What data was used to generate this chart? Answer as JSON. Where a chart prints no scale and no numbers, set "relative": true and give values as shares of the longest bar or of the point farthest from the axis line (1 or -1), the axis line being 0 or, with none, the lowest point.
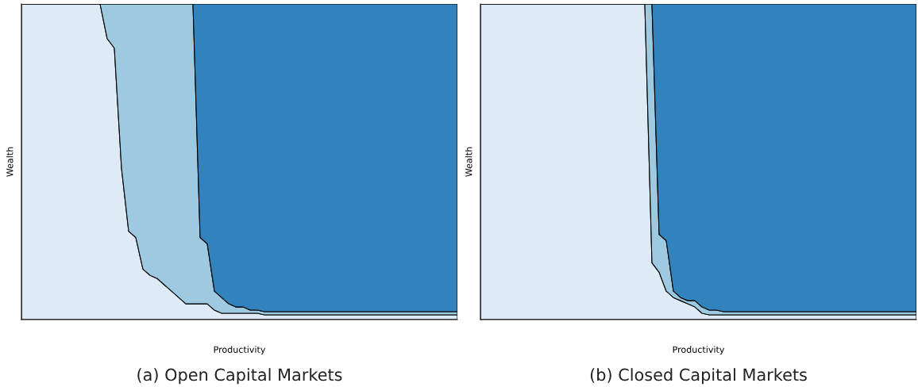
{
  "chart_data": [
    {
      "type": "area",
      "stacked": true,
      "relative": true,
      "tick_labels": false,
      "title": "(a) Open Capital Markets",
      "xlabel": "Productivity",
      "ylabel": "Wealth",
      "categories": [
        null,
        null,
        null,
        null,
        null,
        null,
        null,
        null,
        null,
        null,
        null,
        null,
        null,
        null,
        null,
        null,
        null,
        null,
        null,
        null,
        null,
        null,
        null,
        null,
        null,
        null,
        null,
        null,
        null,
        null,
        null,
        null,
        null,
        null,
        null,
        null,
        null,
        null,
        null,
        null,
        null,
        null,
        null,
        null,
        null,
        null,
        null,
        null,
        null,
        null,
        null,
        null,
        null,
        null,
        null,
        null,
        null,
        null,
        null,
        null,
        null,
        null
      ],
      "series": [
        {
          "color": "#deebf7",
          "values": [
            1,
            1,
            1,
            1,
            1,
            1,
            1,
            1,
            1,
            1,
            1,
            1,
            0.89,
            0.86,
            0.48,
            0.28,
            0.26,
            0.16,
            0.14,
            0.13,
            0.11,
            0.09,
            0.07,
            0.05,
            0.05,
            0.05,
            0.05,
            0.03,
            0.02,
            0.02,
            0.02,
            0.02,
            0.02,
            0.02,
            0.015,
            0.015,
            0.015,
            0.015,
            0.015,
            0.015,
            0.015,
            0.015,
            0.015,
            0.015,
            0.015,
            0.015,
            0.015,
            0.015,
            0.015,
            0.015,
            0.015,
            0.015,
            0.015,
            0.015,
            0.015,
            0.015,
            0.015,
            0.015,
            0.015,
            0.015,
            0.015,
            0.015
          ]
        },
        {
          "color": "#9ecae1",
          "values": [
            0,
            0,
            0,
            0,
            0,
            0,
            0,
            0,
            0,
            0,
            0,
            0,
            0.11,
            0.14,
            0.52,
            0.72,
            0.74,
            0.84,
            0.86,
            0.87,
            0.89,
            0.91,
            0.93,
            0.95,
            0.95,
            0.21,
            0.19,
            0.06,
            0.05,
            0.03,
            0.02,
            0.02,
            0.01,
            0.01,
            0.01,
            0.01,
            0.01,
            0.01,
            0.01,
            0.01,
            0.01,
            0.01,
            0.01,
            0.01,
            0.01,
            0.01,
            0.01,
            0.01,
            0.01,
            0.01,
            0.01,
            0.01,
            0.01,
            0.01,
            0.01,
            0.01,
            0.01,
            0.01,
            0.01,
            0.01,
            0.01,
            0.01
          ]
        },
        {
          "color": "#3182bd",
          "values": [
            0,
            0,
            0,
            0,
            0,
            0,
            0,
            0,
            0,
            0,
            0,
            0,
            0,
            0,
            0,
            0,
            0,
            0,
            0,
            0,
            0,
            0,
            0,
            0,
            0,
            0.74,
            0.76,
            0.91,
            0.93,
            0.95,
            0.96,
            0.96,
            0.97,
            0.97,
            0.975,
            0.975,
            0.975,
            0.975,
            0.975,
            0.975,
            0.975,
            0.975,
            0.975,
            0.975,
            0.975,
            0.975,
            0.975,
            0.975,
            0.975,
            0.975,
            0.975,
            0.975,
            0.975,
            0.975,
            0.975,
            0.975,
            0.975,
            0.975,
            0.975,
            0.975,
            0.975,
            0.975
          ]
        }
      ]
    },
    {
      "type": "area",
      "stacked": true,
      "relative": true,
      "tick_labels": false,
      "title": "(b) Closed Capital Markets",
      "xlabel": "Productivity",
      "ylabel": "Wealth",
      "categories": [
        null,
        null,
        null,
        null,
        null,
        null,
        null,
        null,
        null,
        null,
        null,
        null,
        null,
        null,
        null,
        null,
        null,
        null,
        null,
        null,
        null,
        null,
        null,
        null,
        null,
        null,
        null,
        null,
        null,
        null,
        null,
        null,
        null,
        null,
        null,
        null,
        null,
        null,
        null,
        null,
        null,
        null,
        null,
        null,
        null,
        null,
        null,
        null,
        null,
        null,
        null,
        null,
        null,
        null,
        null,
        null,
        null,
        null,
        null,
        null,
        null,
        null
      ],
      "series": [
        {
          "color": "#deebf7",
          "values": [
            1,
            1,
            1,
            1,
            1,
            1,
            1,
            1,
            1,
            1,
            1,
            1,
            1,
            1,
            1,
            1,
            1,
            1,
            1,
            1,
            1,
            1,
            1,
            1,
            0.18,
            0.15,
            0.09,
            0.07,
            0.06,
            0.05,
            0.04,
            0.02,
            0.015,
            0.015,
            0.015,
            0.015,
            0.015,
            0.015,
            0.015,
            0.015,
            0.015,
            0.015,
            0.015,
            0.015,
            0.015,
            0.015,
            0.015,
            0.015,
            0.015,
            0.015,
            0.015,
            0.015,
            0.015,
            0.015,
            0.015,
            0.015,
            0.015,
            0.015,
            0.015,
            0.015,
            0.015,
            0.015
          ]
        },
        {
          "color": "#9ecae1",
          "values": [
            0,
            0,
            0,
            0,
            0,
            0,
            0,
            0,
            0,
            0,
            0,
            0,
            0,
            0,
            0,
            0,
            0,
            0,
            0,
            0,
            0,
            0,
            0,
            0,
            0.82,
            0.12,
            0.16,
            0.02,
            0.01,
            0.01,
            0.02,
            0.02,
            0.015,
            0.015,
            0.01,
            0.01,
            0.01,
            0.01,
            0.01,
            0.01,
            0.01,
            0.01,
            0.01,
            0.01,
            0.01,
            0.01,
            0.01,
            0.01,
            0.01,
            0.01,
            0.01,
            0.01,
            0.01,
            0.01,
            0.01,
            0.01,
            0.01,
            0.01,
            0.01,
            0.01,
            0.01,
            0.01
          ]
        },
        {
          "color": "#3182bd",
          "values": [
            0,
            0,
            0,
            0,
            0,
            0,
            0,
            0,
            0,
            0,
            0,
            0,
            0,
            0,
            0,
            0,
            0,
            0,
            0,
            0,
            0,
            0,
            0,
            0,
            0,
            0.73,
            0.75,
            0.91,
            0.93,
            0.94,
            0.94,
            0.96,
            0.97,
            0.97,
            0.975,
            0.975,
            0.975,
            0.975,
            0.975,
            0.975,
            0.975,
            0.975,
            0.975,
            0.975,
            0.975,
            0.975,
            0.975,
            0.975,
            0.975,
            0.975,
            0.975,
            0.975,
            0.975,
            0.975,
            0.975,
            0.975,
            0.975,
            0.975,
            0.975,
            0.975,
            0.975,
            0.975
          ]
        }
      ]
    }
  ]
}
